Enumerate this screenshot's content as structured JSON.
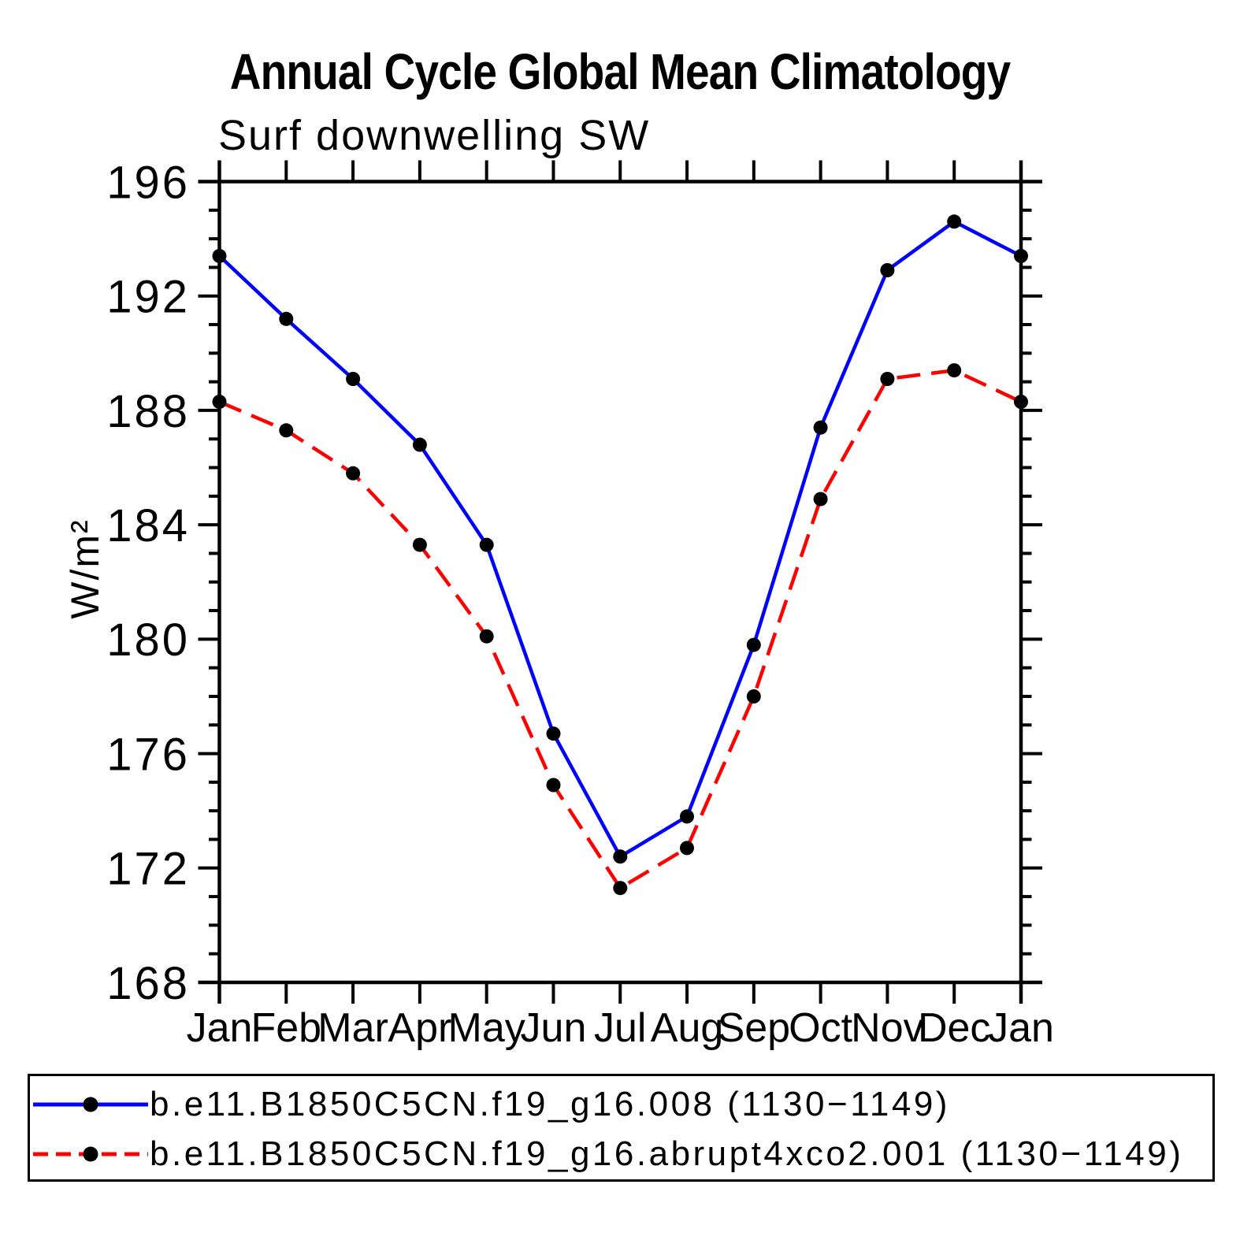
{
  "chart_data": {
    "type": "line",
    "title": "Annual Cycle Global Mean Climatology",
    "subtitle": "Surf downwelling SW",
    "ylabel": "W/m²",
    "xlabel": "",
    "categories": [
      "Jan",
      "Feb",
      "Mar",
      "Apr",
      "May",
      "Jun",
      "Jul",
      "Aug",
      "Sep",
      "Oct",
      "Nov",
      "Dec",
      "Jan"
    ],
    "ylim": [
      168,
      196
    ],
    "y_major_ticks": [
      168,
      172,
      176,
      180,
      184,
      188,
      192,
      196
    ],
    "y_minor_tick_interval": 1,
    "grid": false,
    "legend_position": "bottom",
    "marker": "filled-circle",
    "marker_color": "#000000",
    "axis_color": "#000000",
    "series": [
      {
        "name": "b.e11.B1850C5CN.f19_g16.008 (1130−1149)",
        "color": "#0000ff",
        "line_style": "solid",
        "values": [
          193.4,
          191.2,
          189.1,
          186.8,
          183.3,
          176.7,
          172.4,
          173.8,
          179.8,
          187.4,
          192.9,
          194.6,
          193.4
        ]
      },
      {
        "name": "b.e11.B1850C5CN.f19_g16.abrupt4xco2.001 (1130−1149)",
        "color": "#ff0000",
        "line_style": "dashed",
        "values": [
          188.3,
          187.3,
          185.8,
          183.3,
          180.1,
          174.9,
          171.3,
          172.7,
          178.0,
          184.9,
          189.1,
          189.4,
          188.3
        ]
      }
    ]
  }
}
